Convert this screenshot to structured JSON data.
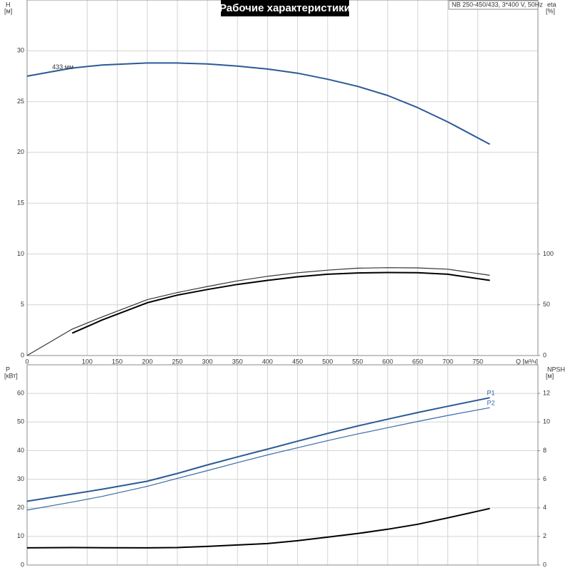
{
  "chart_data": [
    {
      "type": "line",
      "title": "Рабочие характеристики",
      "annotation": "NB 250-450/433, 3*400 V, 50Hz",
      "xlabel": "Q [м³/ч]",
      "ylabel": "H",
      "yunit": "[м]",
      "y2label": "eta",
      "y2unit": "[%]",
      "x": [
        0,
        75,
        125,
        200,
        250,
        300,
        350,
        400,
        450,
        500,
        550,
        600,
        650,
        700,
        770
      ],
      "series": [
        {
          "name": "433 мм",
          "color": "#2a5a96",
          "linewidth": 2,
          "values": [
            27.5,
            28.3,
            28.6,
            28.8,
            28.8,
            28.7,
            28.5,
            28.2,
            27.8,
            27.2,
            26.5,
            25.6,
            24.4,
            23.0,
            20.8
          ]
        },
        {
          "color": "#333333",
          "linewidth": 1.2,
          "axis": "y2",
          "values": [
            0,
            26,
            38,
            55,
            62,
            68,
            73.5,
            78,
            81.5,
            84,
            86,
            86.5,
            86.3,
            85,
            79
          ]
        },
        {
          "color": "#000000",
          "linewidth": 2,
          "axis": "y2",
          "values": [
            null,
            22,
            35,
            52,
            59.5,
            65,
            70,
            74,
            77.5,
            80,
            81.3,
            81.7,
            81.5,
            80,
            74
          ]
        }
      ],
      "xlim": [
        0,
        850
      ],
      "ylim": [
        0,
        35
      ],
      "y2lim": [
        0,
        350
      ],
      "xticks": [
        0,
        100,
        150,
        200,
        250,
        300,
        350,
        400,
        450,
        500,
        550,
        600,
        650,
        700,
        750
      ],
      "yticks": [
        0,
        5,
        10,
        15,
        20,
        25,
        30
      ],
      "y2ticks": [
        0,
        50,
        100
      ],
      "grid": true
    },
    {
      "type": "line",
      "ylabel": "P",
      "yunit": "[кВт]",
      "y2label": "NPSH",
      "y2unit": "[м]",
      "x": [
        0,
        75,
        125,
        200,
        250,
        300,
        350,
        400,
        450,
        500,
        550,
        600,
        650,
        700,
        770
      ],
      "series": [
        {
          "name": "P1",
          "color": "#2a5a96",
          "linewidth": 2,
          "values": [
            22.3,
            24.8,
            26.5,
            29.3,
            32,
            35,
            37.8,
            40.5,
            43.3,
            46,
            48.6,
            51,
            53.3,
            55.5,
            58.5
          ]
        },
        {
          "name": "P2",
          "color": "#3a6aa6",
          "linewidth": 1.2,
          "values": [
            19.2,
            22,
            24,
            27.5,
            30.3,
            33,
            35.8,
            38.5,
            41,
            43.5,
            45.8,
            48,
            50.2,
            52.3,
            55
          ]
        },
        {
          "color": "#000000",
          "linewidth": 2,
          "axis": "y2",
          "values": [
            1.2,
            1.22,
            1.21,
            1.2,
            1.22,
            1.3,
            1.4,
            1.5,
            1.7,
            1.95,
            2.2,
            2.5,
            2.85,
            3.3,
            3.95
          ]
        }
      ],
      "xlim": [
        0,
        850
      ],
      "ylim": [
        0,
        70
      ],
      "y2lim": [
        0,
        14
      ],
      "xticks": [
        0,
        100,
        150,
        200,
        250,
        300,
        350,
        400,
        450,
        500,
        550,
        600,
        650,
        700,
        750
      ],
      "yticks": [
        0,
        10,
        20,
        30,
        40,
        50,
        60
      ],
      "y2ticks": [
        0,
        2,
        4,
        6,
        8,
        10,
        12
      ],
      "grid": true
    }
  ]
}
